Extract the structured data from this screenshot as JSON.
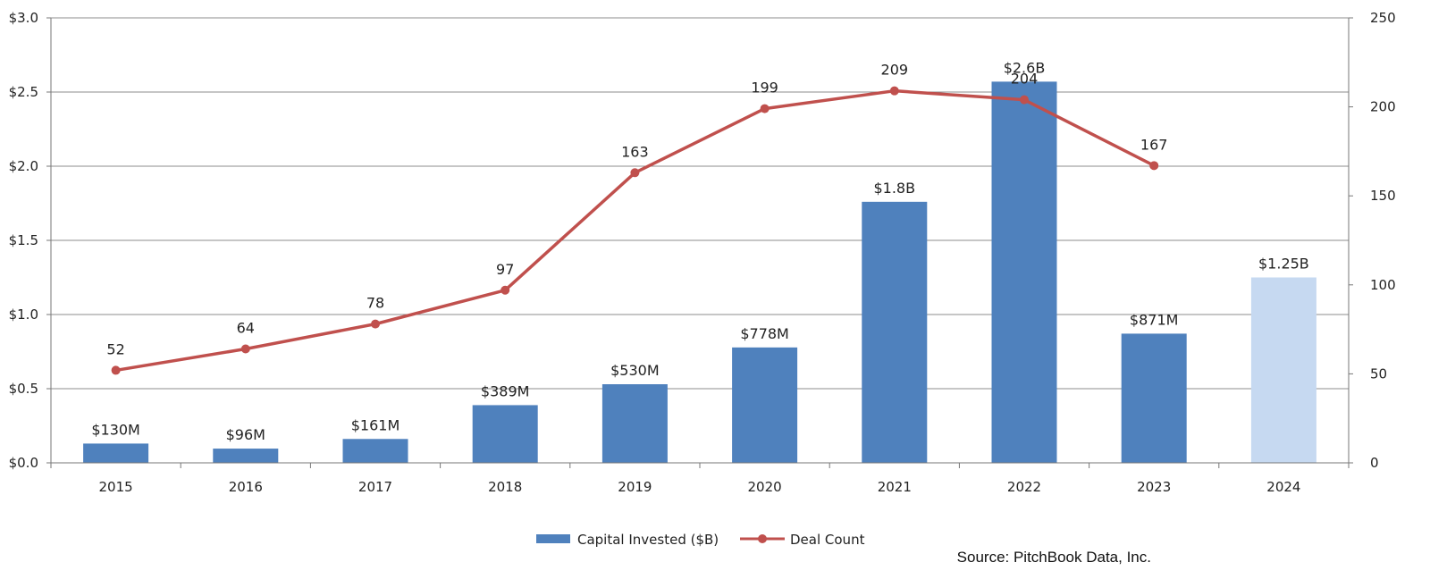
{
  "chart_data": {
    "type": "bar+line",
    "categories": [
      "2015",
      "2016",
      "2017",
      "2018",
      "2019",
      "2020",
      "2021",
      "2022",
      "2023",
      "2024"
    ],
    "series": [
      {
        "name": "Capital Invested ($B)",
        "type": "bar",
        "axis": "left",
        "values": [
          0.13,
          0.096,
          0.161,
          0.389,
          0.53,
          0.778,
          1.76,
          2.57,
          0.871,
          1.25
        ],
        "labels": [
          "$130M",
          "$96M",
          "$161M",
          "$389M",
          "$530M",
          "$778M",
          "$1.8B",
          "$2.6B",
          "$871M",
          "$1.25B"
        ],
        "color": "#4f81bd",
        "highlight_color": "#c6d9f1",
        "highlight_index": 9
      },
      {
        "name": "Deal Count",
        "type": "line",
        "axis": "right",
        "values": [
          52,
          64,
          78,
          97,
          163,
          199,
          209,
          204,
          167,
          null
        ],
        "labels": [
          "52",
          "64",
          "78",
          "97",
          "163",
          "199",
          "209",
          "204",
          "167",
          ""
        ],
        "color": "#c0504d"
      }
    ],
    "y_left": {
      "min": 0,
      "max": 3.0,
      "step": 0.5,
      "tick_labels": [
        "$0.0",
        "$0.5",
        "$1.0",
        "$1.5",
        "$2.0",
        "$2.5",
        "$3.0"
      ]
    },
    "y_right": {
      "min": 0,
      "max": 250,
      "step": 50,
      "tick_labels": [
        "0",
        "50",
        "100",
        "150",
        "200",
        "250"
      ]
    },
    "grid": true,
    "legend_position": "bottom-center"
  },
  "source": "Source: PitchBook Data, Inc."
}
